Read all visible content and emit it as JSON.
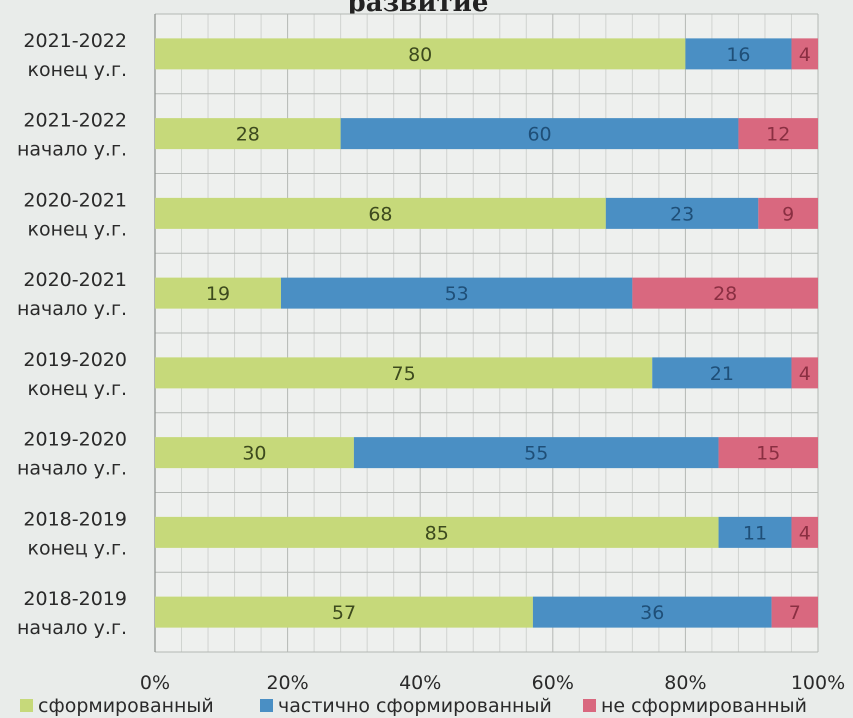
{
  "chart_data": {
    "type": "bar",
    "orientation": "horizontal",
    "stacked": "percent",
    "title": "развитие",
    "categories": [
      [
        "2021-2022",
        "конец у.г."
      ],
      [
        "2021-2022",
        "начало у.г."
      ],
      [
        "2020-2021",
        "конец у.г."
      ],
      [
        "2020-2021",
        "начало у.г."
      ],
      [
        "2019-2020",
        "конец у.г."
      ],
      [
        "2019-2020",
        "начало у.г."
      ],
      [
        "2018-2019",
        "конец у.г."
      ],
      [
        "2018-2019",
        "начало у.г."
      ]
    ],
    "series": [
      {
        "name": "сформированный",
        "color": "#c6d97a",
        "label_color": "#3d4a1e",
        "values": [
          80,
          28,
          68,
          19,
          75,
          30,
          85,
          57
        ]
      },
      {
        "name": "частично сформированный",
        "color": "#4a8fc4",
        "label_color": "#1f4f78",
        "values": [
          16,
          60,
          23,
          53,
          21,
          55,
          11,
          36
        ]
      },
      {
        "name": "не сформированный",
        "color": "#d9687f",
        "label_color": "#8a2f42",
        "values": [
          4,
          12,
          9,
          28,
          4,
          15,
          4,
          7
        ]
      }
    ],
    "xlim": [
      0,
      100
    ],
    "x_ticks": [
      "0%",
      "20%",
      "40%",
      "60%",
      "80%",
      "100%"
    ],
    "grid": true,
    "legend_position": "bottom"
  }
}
